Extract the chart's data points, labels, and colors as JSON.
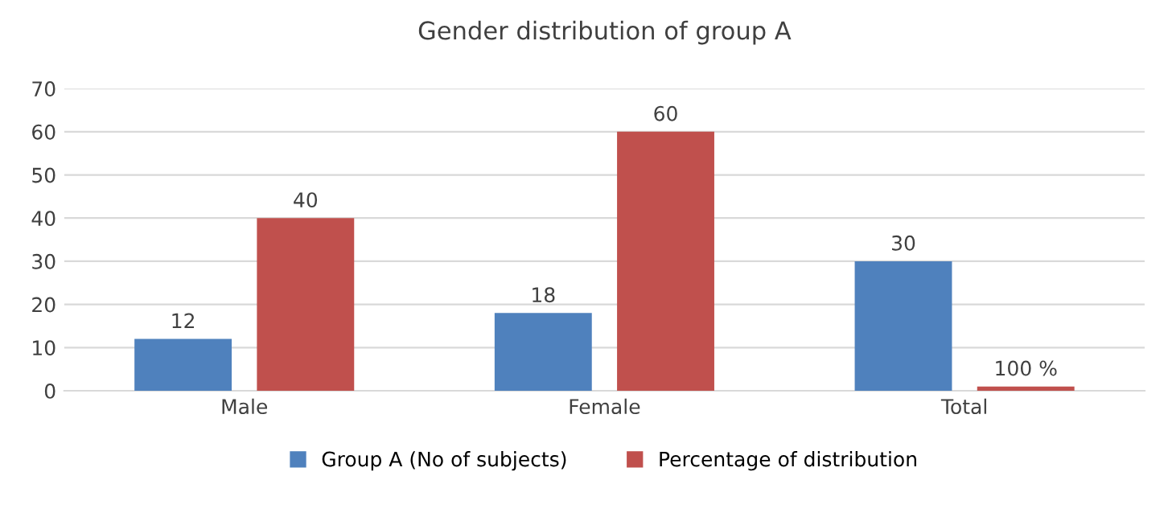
{
  "chart_data": {
    "type": "bar",
    "title": "Gender distribution of group A",
    "categories": [
      "Male",
      "Female",
      "Total"
    ],
    "series": [
      {
        "name": "Group A (No of subjects)",
        "color": "#4f81bd",
        "values": [
          12,
          18,
          30
        ],
        "value_labels": [
          "12",
          "18",
          "30"
        ]
      },
      {
        "name": "Percentage of distribution",
        "color": "#c0504d",
        "values": [
          40,
          60,
          1
        ],
        "value_labels": [
          "40",
          "60",
          "100 %"
        ]
      }
    ],
    "ylim": [
      0,
      70
    ],
    "yticks": [
      0,
      10,
      20,
      30,
      40,
      50,
      60,
      70
    ],
    "grid": "y",
    "legend": "bottom"
  }
}
